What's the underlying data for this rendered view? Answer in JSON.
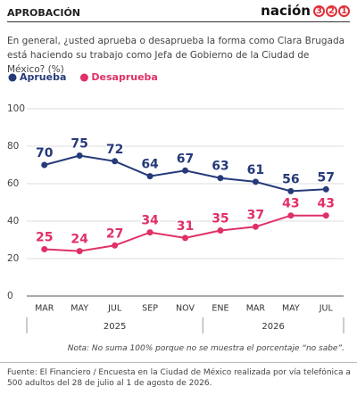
{
  "brand": {
    "name": "nación",
    "digits": [
      "3",
      "2",
      "1"
    ]
  },
  "chart_data": {
    "type": "line",
    "kicker": "APROBACIÓN",
    "title": "En general, ¿usted aprueba o desaprueba la forma como Clara Brugada está haciendo su trabajo como Jefa de Gobierno de la Ciudad de México? (%)",
    "categories": [
      "MAR",
      "MAY",
      "JUL",
      "SEP",
      "NOV",
      "ENE",
      "MAR",
      "MAY",
      "JUL"
    ],
    "years": [
      "2025",
      "2025",
      "2025",
      "2025",
      "2025",
      "2026",
      "2026",
      "2026",
      "2026"
    ],
    "series": [
      {
        "name": "Aprueba",
        "color": "#263a7a",
        "values": [
          70,
          75,
          72,
          64,
          67,
          63,
          61,
          56,
          57
        ]
      },
      {
        "name": "Desaprueba",
        "color": "#e03066",
        "values": [
          25,
          24,
          27,
          34,
          31,
          35,
          37,
          43,
          43
        ]
      }
    ],
    "ylim": [
      0,
      100
    ],
    "yticks": [
      0,
      20,
      40,
      60,
      80,
      100
    ],
    "grid": true,
    "note": "Nota: No suma 100% porque no se muestra el porcentaje “no sabe”.",
    "source": "Fuente: El Financiero / Encuesta en la Ciudad de México realizada por vía telefónica a 500 adultos del 28 de julio al 1 de agosto de 2026."
  }
}
